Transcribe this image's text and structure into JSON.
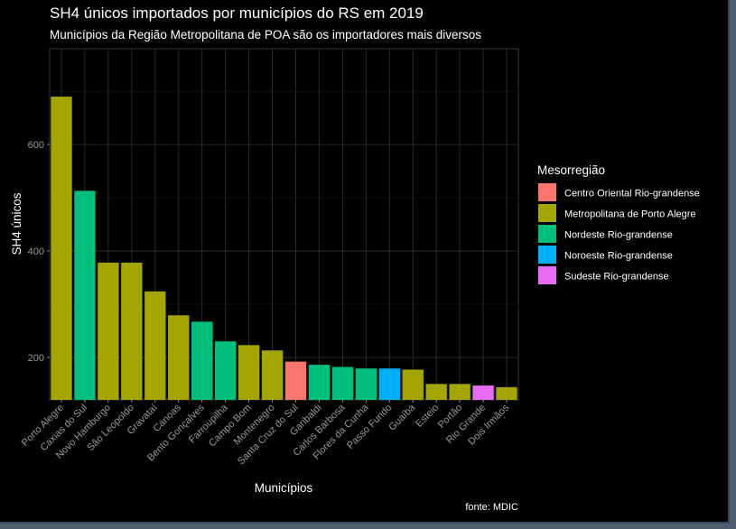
{
  "chart_data": {
    "type": "bar",
    "title": "SH4 únicos importados por municípios do RS em 2019",
    "subtitle": "Municípios da Região Metropolitana de POA são os importadores mais diversos",
    "xlabel": "Municípios",
    "ylabel": "SH4 únicos",
    "caption": "fonte: MDIC",
    "ylim": [
      120,
      780
    ],
    "yticks": [
      200,
      400,
      600
    ],
    "grid": true,
    "legend": {
      "title": "Mesorregião",
      "placement": "right",
      "entries": [
        {
          "label": "Centro Oriental Rio-grandense",
          "color": "#F8766D"
        },
        {
          "label": "Metropolitana de Porto Alegre",
          "color": "#A3A500"
        },
        {
          "label": "Nordeste Rio-grandense",
          "color": "#00BF7D"
        },
        {
          "label": "Noroeste Rio-grandense",
          "color": "#00B0F6"
        },
        {
          "label": "Sudeste Rio-grandense",
          "color": "#E76BF3"
        }
      ]
    },
    "bars": [
      {
        "category": "Porto Alegre",
        "value": 690,
        "group": 1
      },
      {
        "category": "Caxias do Sul",
        "value": 513,
        "group": 2
      },
      {
        "category": "Novo Hamburgo",
        "value": 378,
        "group": 1
      },
      {
        "category": "São Leopoldo",
        "value": 378,
        "group": 1
      },
      {
        "category": "Gravataí",
        "value": 324,
        "group": 1
      },
      {
        "category": "Canoas",
        "value": 279,
        "group": 1
      },
      {
        "category": "Bento Gonçalves",
        "value": 267,
        "group": 2
      },
      {
        "category": "Farroupilha",
        "value": 230,
        "group": 2
      },
      {
        "category": "Campo Bom",
        "value": 223,
        "group": 1
      },
      {
        "category": "Montenegro",
        "value": 213,
        "group": 1
      },
      {
        "category": "Santa Cruz do Sul",
        "value": 192,
        "group": 0
      },
      {
        "category": "Garibaldi",
        "value": 186,
        "group": 2
      },
      {
        "category": "Carlos Barbosa",
        "value": 182,
        "group": 2
      },
      {
        "category": "Flores da Cunha",
        "value": 179,
        "group": 2
      },
      {
        "category": "Passo Fundo",
        "value": 179,
        "group": 3
      },
      {
        "category": "Guaíba",
        "value": 177,
        "group": 1
      },
      {
        "category": "Esteio",
        "value": 150,
        "group": 1
      },
      {
        "category": "Portão",
        "value": 150,
        "group": 1
      },
      {
        "category": "Rio Grande",
        "value": 147,
        "group": 4
      },
      {
        "category": "Dois Irmãos",
        "value": 144,
        "group": 1
      }
    ]
  }
}
